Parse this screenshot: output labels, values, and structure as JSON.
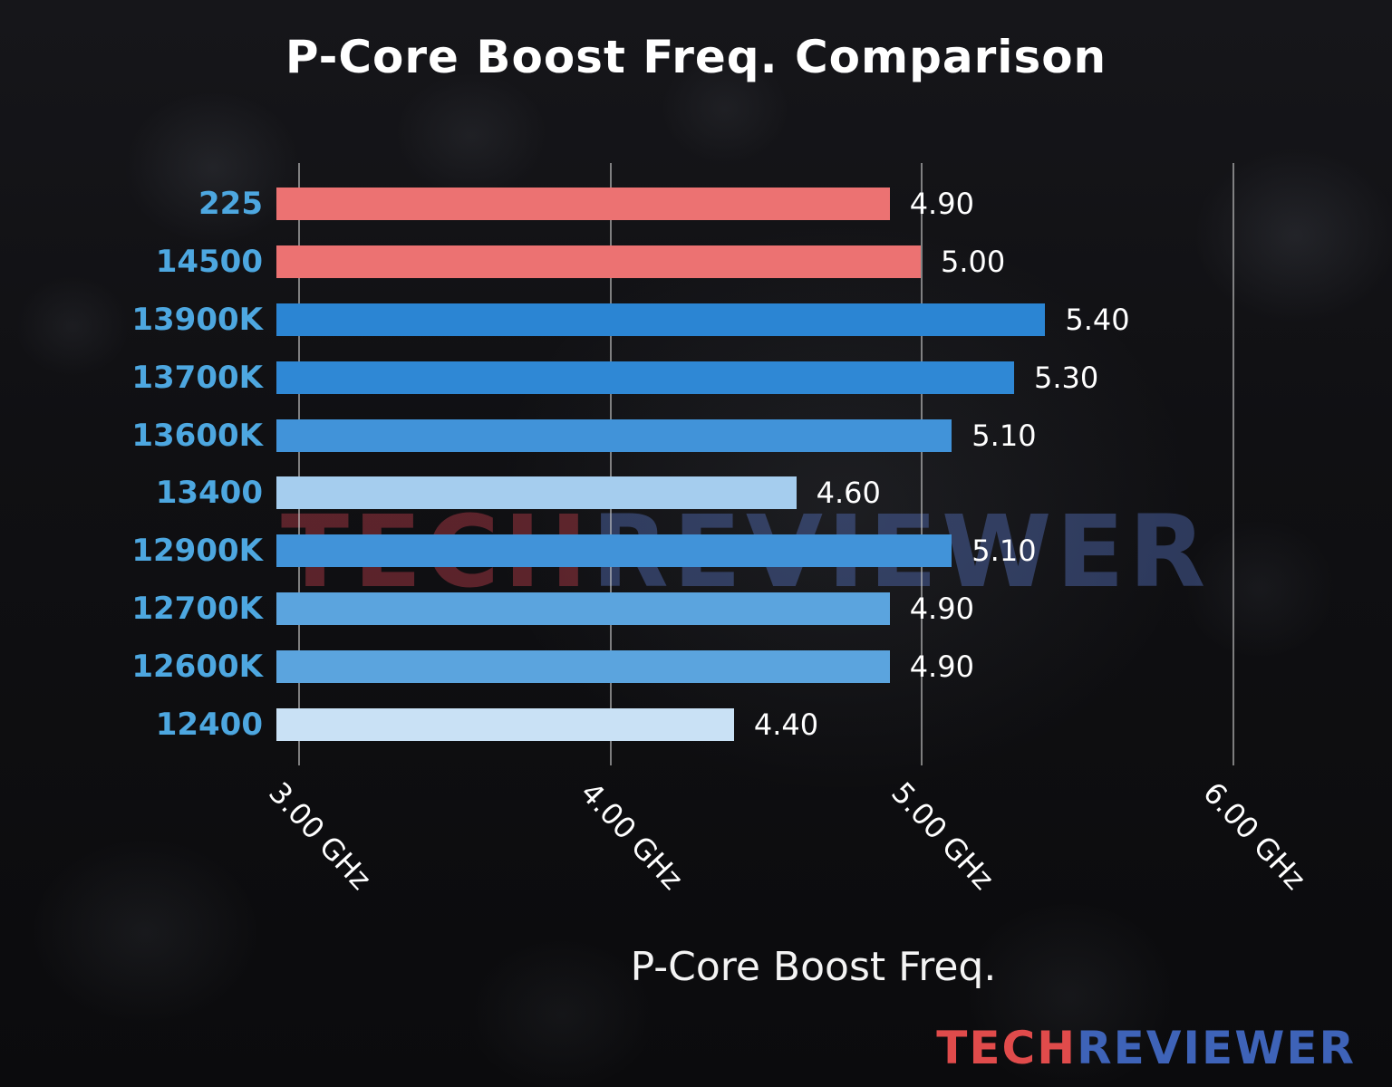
{
  "watermark_center": {
    "part1": "TECH",
    "part2": "REVIEWER"
  },
  "watermark_corner": {
    "part1": "TECH",
    "part2": "REVIEWER"
  },
  "chart_data": {
    "type": "bar",
    "orientation": "horizontal",
    "title": "P-Core Boost Freq. Comparison",
    "xlabel": "P-Core Boost Freq.",
    "ylabel": "",
    "unit": "GHz",
    "grid": true,
    "xlim": [
      2.93,
      6.38
    ],
    "categories": [
      "225",
      "14500",
      "13900K",
      "13700K",
      "13600K",
      "13400",
      "12900K",
      "12700K",
      "12600K",
      "12400"
    ],
    "values": [
      4.9,
      5.0,
      5.4,
      5.3,
      5.1,
      4.6,
      5.1,
      4.9,
      4.9,
      4.4
    ],
    "value_labels": [
      "4.90",
      "5.00",
      "5.40",
      "5.30",
      "5.10",
      "4.60",
      "5.10",
      "4.90",
      "4.90",
      "4.40"
    ],
    "bar_colors": [
      "#ec7272",
      "#ec7272",
      "#2b85d3",
      "#2f88d5",
      "#4193d9",
      "#a5cdee",
      "#4193d9",
      "#5ba4de",
      "#5ba4de",
      "#c9e1f5"
    ],
    "category_label_color": "#4da7e0",
    "value_label_color": "#ffffff",
    "x_ticks": [
      {
        "value": 3.0,
        "label": "3.00 GHz"
      },
      {
        "value": 4.0,
        "label": "4.00 GHz"
      },
      {
        "value": 5.0,
        "label": "5.00 GHz"
      },
      {
        "value": 6.0,
        "label": "6.00 GHz"
      }
    ]
  }
}
